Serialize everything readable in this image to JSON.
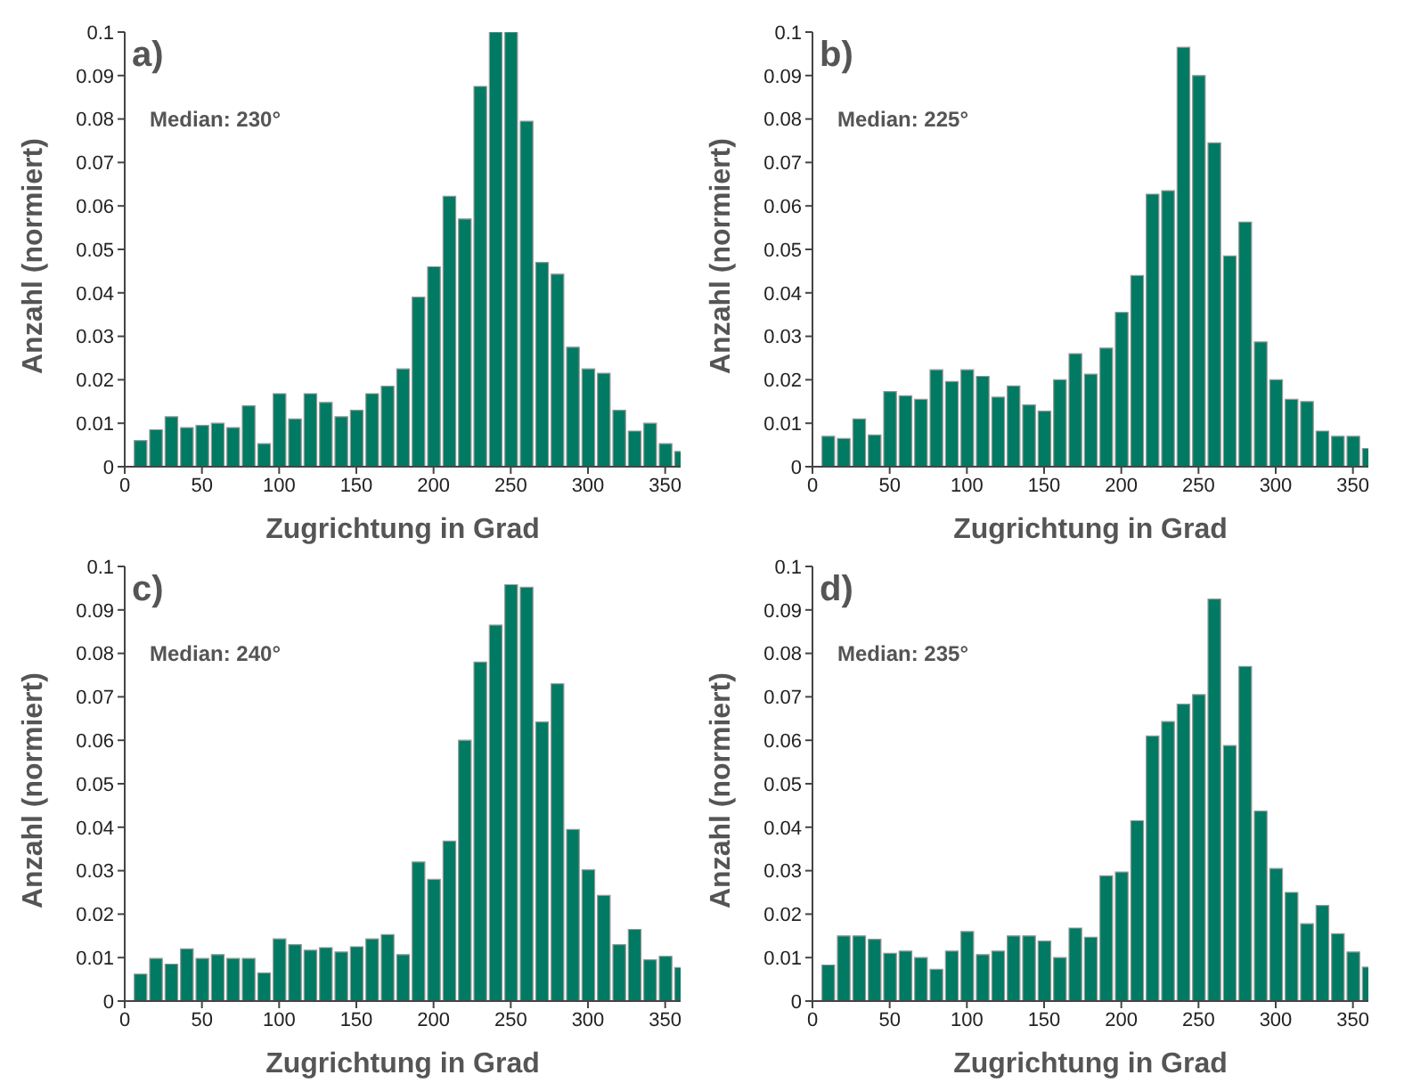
{
  "chart_data": [
    {
      "type": "bar",
      "x": [
        10,
        20,
        30,
        40,
        50,
        60,
        70,
        80,
        90,
        100,
        110,
        120,
        130,
        140,
        150,
        160,
        170,
        180,
        190,
        200,
        210,
        220,
        230,
        240,
        250,
        260,
        270,
        280,
        290,
        300,
        310,
        320,
        330,
        340,
        350,
        360
      ],
      "values": [
        0.006,
        0.0085,
        0.0115,
        0.009,
        0.0095,
        0.01,
        0.009,
        0.014,
        0.0053,
        0.0168,
        0.011,
        0.0168,
        0.0148,
        0.0115,
        0.013,
        0.0168,
        0.0185,
        0.0225,
        0.039,
        0.046,
        0.0622,
        0.057,
        0.0875,
        0.1,
        0.1,
        0.0795,
        0.047,
        0.0443,
        0.0275,
        0.0225,
        0.0215,
        0.013,
        0.0082,
        0.01,
        0.0053,
        0.0035
      ],
      "color": "#007a62",
      "xlim": [
        0,
        360
      ],
      "ylim": [
        0,
        0.1
      ],
      "xticks": [
        0,
        50,
        100,
        150,
        200,
        250,
        300,
        350
      ],
      "yticks": [
        0,
        0.01,
        0.02,
        0.03,
        0.04,
        0.05,
        0.06,
        0.07,
        0.08,
        0.09,
        0.1
      ],
      "xlabel": "Zugrichtung in Grad",
      "ylabel": "Anzahl (normiert)",
      "annotations": [
        "a)",
        "Median: 230°"
      ],
      "grid": false,
      "legend": false
    },
    {
      "type": "bar",
      "x": [
        10,
        20,
        30,
        40,
        50,
        60,
        70,
        80,
        90,
        100,
        110,
        120,
        130,
        140,
        150,
        160,
        170,
        180,
        190,
        200,
        210,
        220,
        230,
        240,
        250,
        260,
        270,
        280,
        290,
        300,
        310,
        320,
        330,
        340,
        350,
        360
      ],
      "values": [
        0.007,
        0.0065,
        0.011,
        0.0073,
        0.0173,
        0.0163,
        0.0155,
        0.0223,
        0.0196,
        0.0223,
        0.0208,
        0.016,
        0.0186,
        0.0142,
        0.0128,
        0.02,
        0.026,
        0.0213,
        0.0273,
        0.0355,
        0.044,
        0.0627,
        0.0635,
        0.0965,
        0.09,
        0.0745,
        0.0485,
        0.0563,
        0.0287,
        0.02,
        0.0155,
        0.015,
        0.0082,
        0.007,
        0.007,
        0.0042
      ],
      "color": "#007a62",
      "xlim": [
        0,
        360
      ],
      "ylim": [
        0,
        0.1
      ],
      "xticks": [
        0,
        50,
        100,
        150,
        200,
        250,
        300,
        350
      ],
      "yticks": [
        0,
        0.01,
        0.02,
        0.03,
        0.04,
        0.05,
        0.06,
        0.07,
        0.08,
        0.09,
        0.1
      ],
      "xlabel": "Zugrichtung in Grad",
      "ylabel": "Anzahl (normiert)",
      "annotations": [
        "b)",
        "Median: 225°"
      ],
      "grid": false,
      "legend": false
    },
    {
      "type": "bar",
      "x": [
        10,
        20,
        30,
        40,
        50,
        60,
        70,
        80,
        90,
        100,
        110,
        120,
        130,
        140,
        150,
        160,
        170,
        180,
        190,
        200,
        210,
        220,
        230,
        240,
        250,
        260,
        270,
        280,
        290,
        300,
        310,
        320,
        330,
        340,
        350,
        360
      ],
      "values": [
        0.0062,
        0.0098,
        0.0085,
        0.012,
        0.0098,
        0.0107,
        0.0098,
        0.0098,
        0.0065,
        0.0143,
        0.013,
        0.0117,
        0.0123,
        0.0113,
        0.0125,
        0.0143,
        0.0153,
        0.0107,
        0.032,
        0.028,
        0.0368,
        0.06,
        0.078,
        0.0865,
        0.0958,
        0.0952,
        0.0642,
        0.073,
        0.0395,
        0.0302,
        0.0243,
        0.013,
        0.0165,
        0.0095,
        0.0103,
        0.0077
      ],
      "color": "#007a62",
      "xlim": [
        0,
        360
      ],
      "ylim": [
        0,
        0.1
      ],
      "xticks": [
        0,
        50,
        100,
        150,
        200,
        250,
        300,
        350
      ],
      "yticks": [
        0,
        0.01,
        0.02,
        0.03,
        0.04,
        0.05,
        0.06,
        0.07,
        0.08,
        0.09,
        0.1
      ],
      "xlabel": "Zugrichtung in Grad",
      "ylabel": "Anzahl (normiert)",
      "annotations": [
        "c)",
        "Median: 240°"
      ],
      "grid": false,
      "legend": false
    },
    {
      "type": "bar",
      "x": [
        10,
        20,
        30,
        40,
        50,
        60,
        70,
        80,
        90,
        100,
        110,
        120,
        130,
        140,
        150,
        160,
        170,
        180,
        190,
        200,
        210,
        220,
        230,
        240,
        250,
        260,
        270,
        280,
        290,
        300,
        310,
        320,
        330,
        340,
        350,
        360
      ],
      "values": [
        0.0083,
        0.015,
        0.015,
        0.0142,
        0.011,
        0.0115,
        0.01,
        0.0073,
        0.0115,
        0.016,
        0.0107,
        0.0115,
        0.015,
        0.015,
        0.0138,
        0.01,
        0.0168,
        0.0147,
        0.0288,
        0.0297,
        0.0415,
        0.061,
        0.0643,
        0.0683,
        0.0705,
        0.0925,
        0.0588,
        0.077,
        0.0437,
        0.0305,
        0.025,
        0.0178,
        0.022,
        0.0155,
        0.0113,
        0.0078
      ],
      "color": "#007a62",
      "xlim": [
        0,
        360
      ],
      "ylim": [
        0,
        0.1
      ],
      "xticks": [
        0,
        50,
        100,
        150,
        200,
        250,
        300,
        350
      ],
      "yticks": [
        0,
        0.01,
        0.02,
        0.03,
        0.04,
        0.05,
        0.06,
        0.07,
        0.08,
        0.09,
        0.1
      ],
      "xlabel": "Zugrichtung in Grad",
      "ylabel": "Anzahl (normiert)",
      "annotations": [
        "d)",
        "Median: 235°"
      ],
      "grid": false,
      "legend": false
    }
  ]
}
